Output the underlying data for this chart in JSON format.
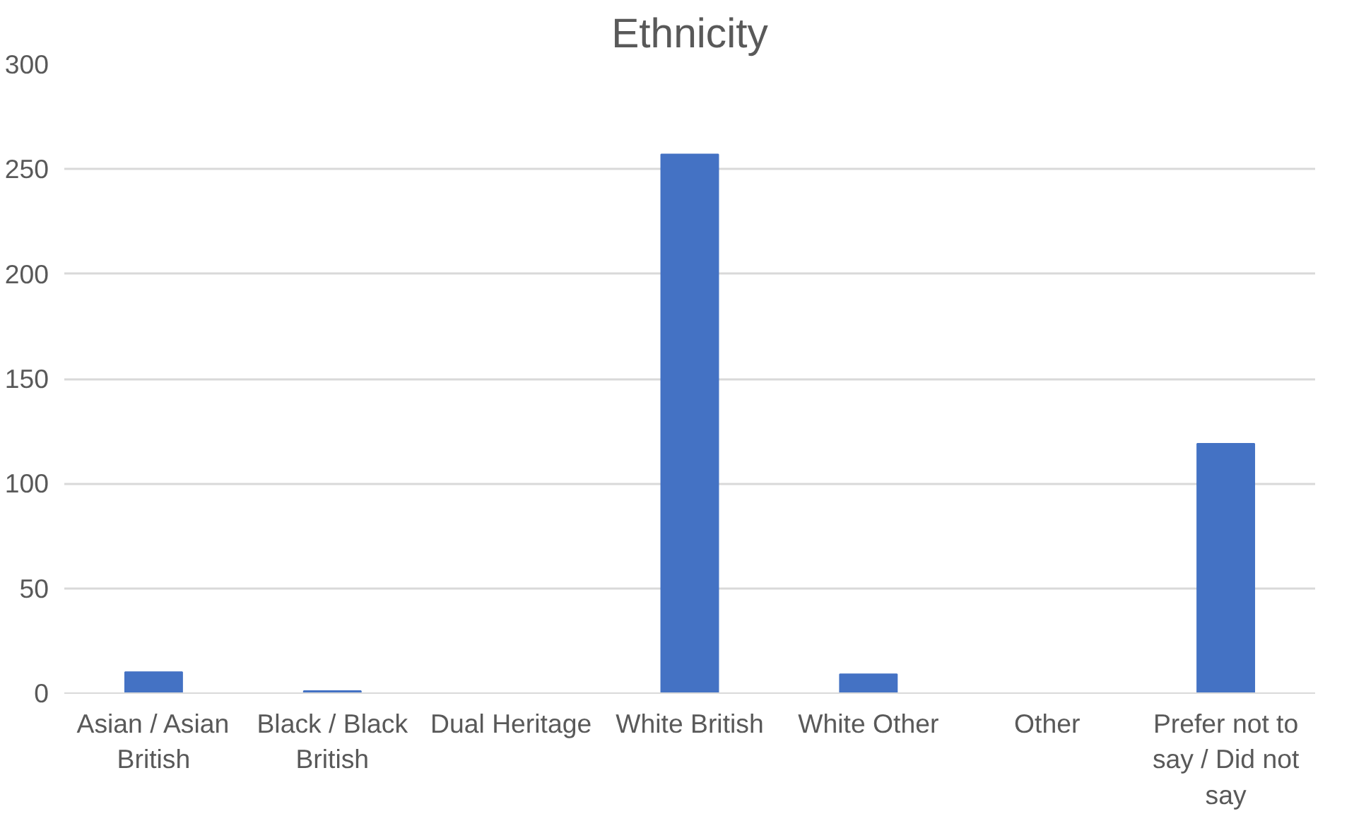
{
  "chart_data": {
    "type": "bar",
    "title": "Ethnicity",
    "categories": [
      "Asian / Asian British",
      "Black / Black British",
      "Dual Heritage",
      "White British",
      "White Other",
      "Other",
      "Prefer not to say / Did not say"
    ],
    "values": [
      10,
      1,
      0,
      257,
      9,
      0,
      119
    ],
    "color": "#4472c4",
    "ylim": [
      0,
      300
    ],
    "yticks": [
      0,
      50,
      100,
      150,
      200,
      250,
      300
    ],
    "grid": "y"
  }
}
